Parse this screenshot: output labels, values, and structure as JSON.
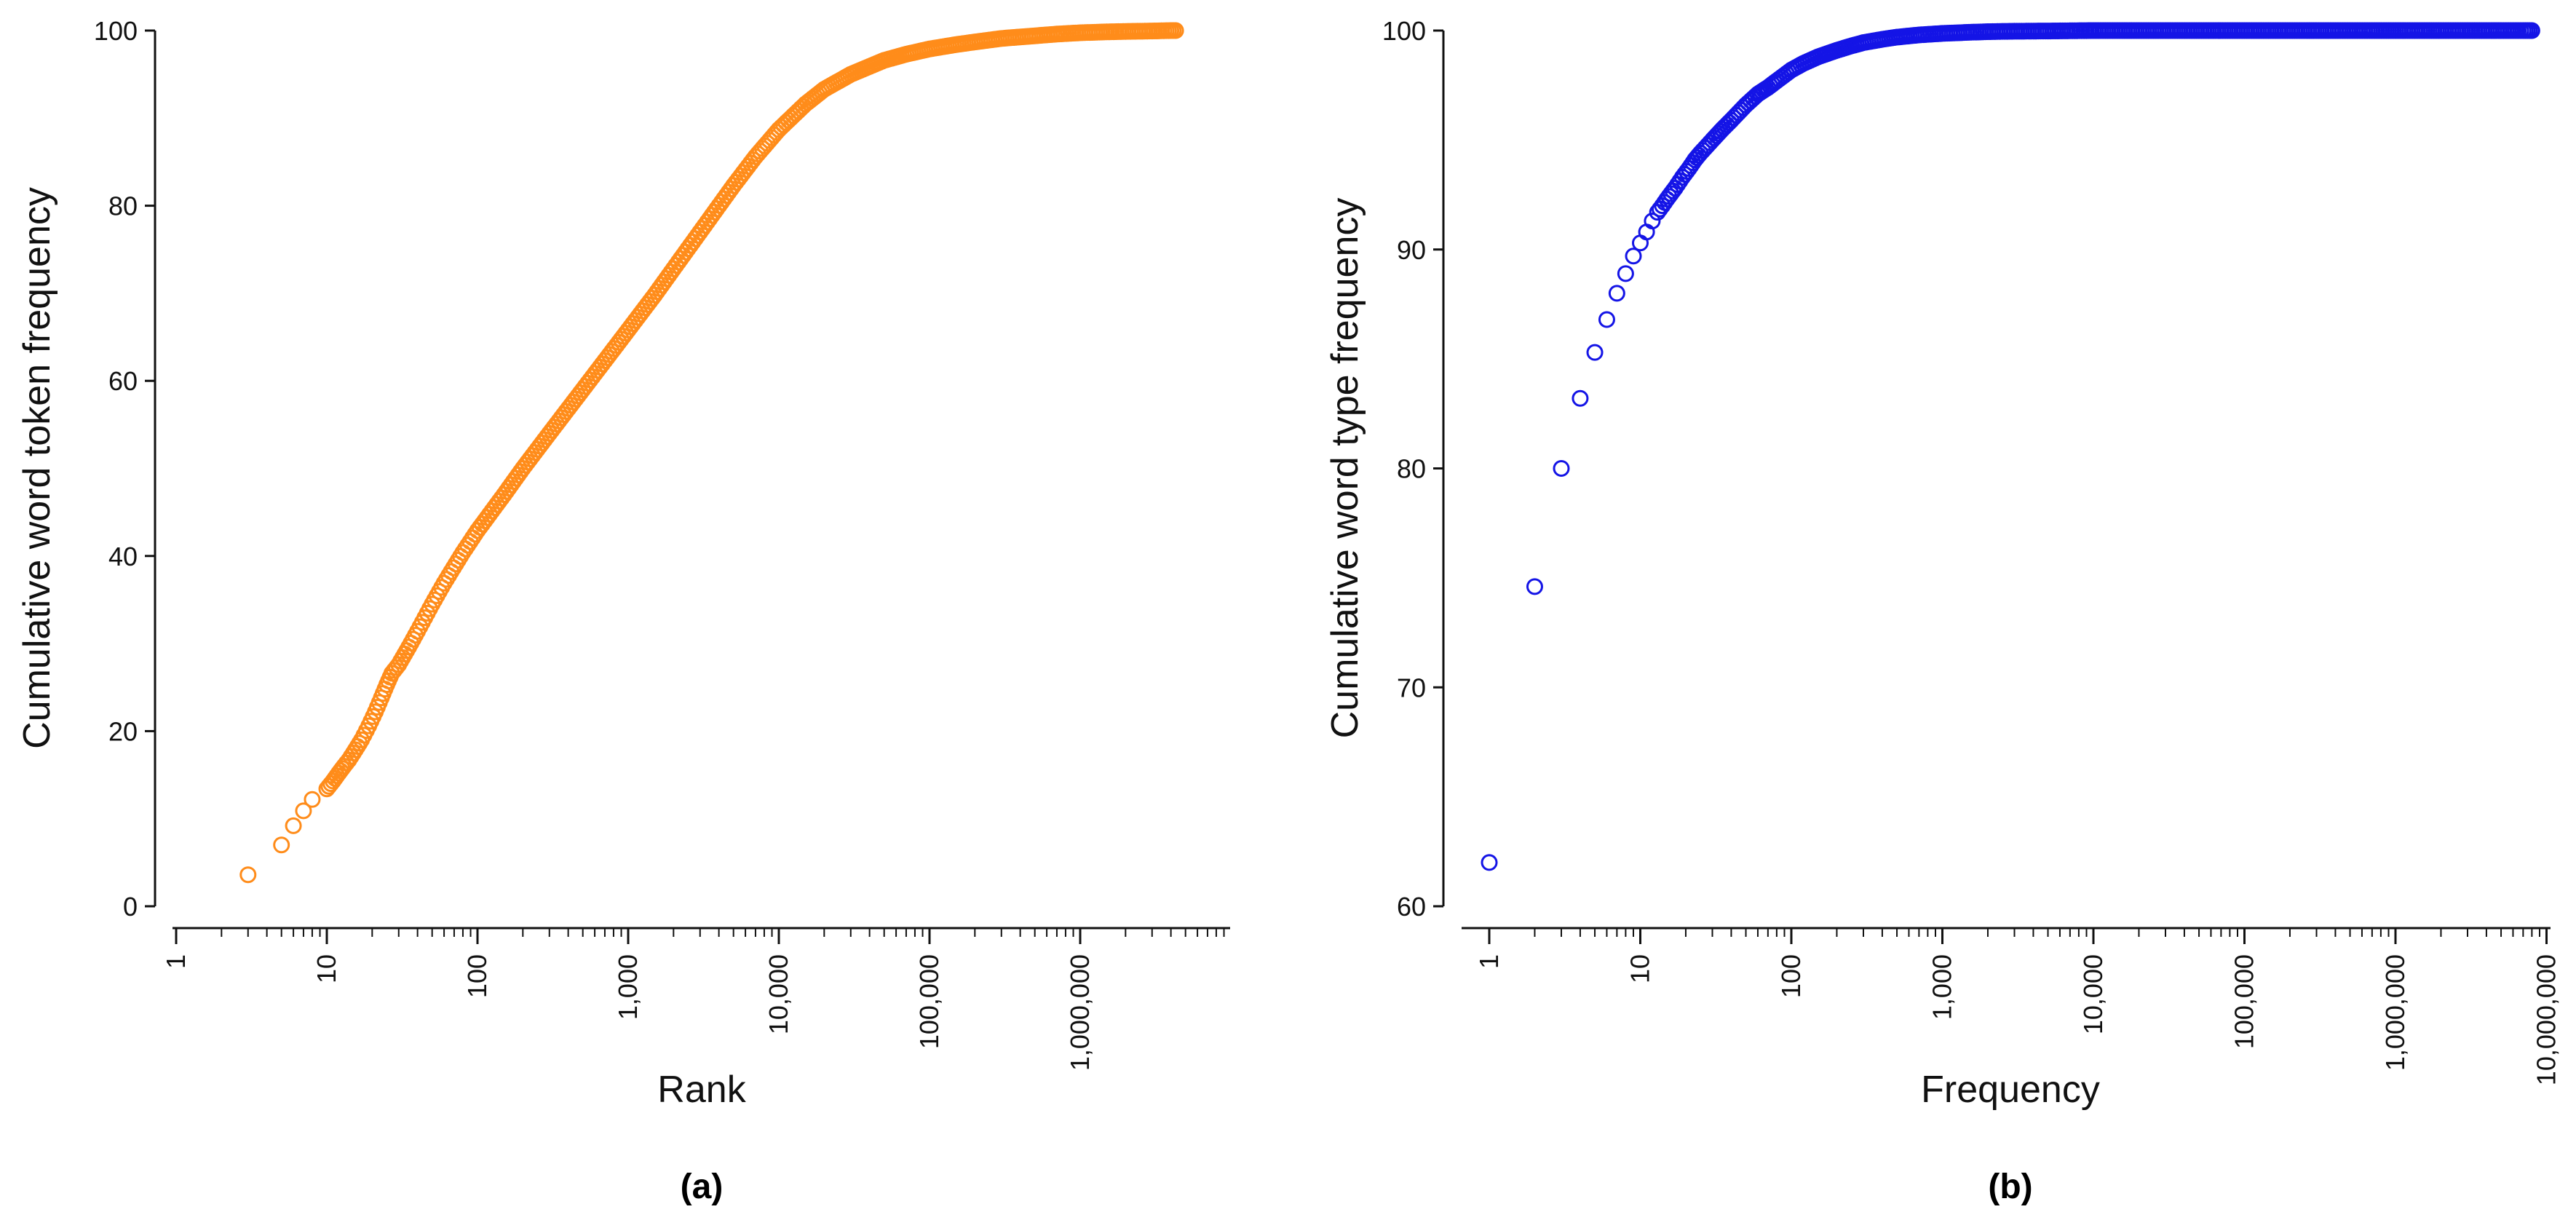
{
  "chart_data": [
    {
      "type": "scatter",
      "panel_label": "(a)",
      "xlabel": "Rank",
      "ylabel": "Cumulative word token frequency",
      "xscale": "log",
      "xlim": [
        1,
        10000000
      ],
      "ylim": [
        0,
        100
      ],
      "xticks": [
        1,
        10,
        100,
        1000,
        10000,
        100000,
        1000000
      ],
      "xtick_labels": [
        "1",
        "10",
        "100",
        "1,000",
        "10,000",
        "100,000",
        "1,000,000"
      ],
      "yticks": [
        0,
        20,
        40,
        60,
        80,
        100
      ],
      "ytick_labels": [
        "0",
        "20",
        "40",
        "60",
        "80",
        "100"
      ],
      "marker_color": "#FF8C1A",
      "marker": "open-circle",
      "curve_note": "Dense points trace the cumulative curve; values read from the figure",
      "x": [
        3,
        5,
        6,
        7,
        8,
        10,
        11,
        12,
        13,
        14,
        15,
        17,
        19,
        21,
        23,
        25,
        27,
        30,
        35,
        40,
        50,
        60,
        80,
        100,
        150,
        200,
        300,
        500,
        700,
        1000,
        1500,
        2000,
        3000,
        5000,
        7000,
        10000,
        15000,
        20000,
        30000,
        50000,
        70000,
        100000,
        150000,
        200000,
        300000,
        500000,
        700000,
        1000000,
        1500000,
        2000000,
        3000000,
        4000000,
        4300000
      ],
      "y": [
        3.6,
        7.0,
        9.2,
        10.9,
        12.2,
        13.4,
        14.3,
        15.2,
        16.0,
        16.7,
        17.5,
        19.0,
        20.6,
        22.2,
        23.8,
        25.3,
        26.6,
        27.6,
        29.6,
        31.4,
        34.5,
        36.9,
        40.4,
        42.9,
        47.0,
        50.0,
        54.0,
        59.0,
        62.3,
        65.8,
        69.8,
        72.8,
        77.0,
        82.3,
        85.6,
        88.7,
        91.6,
        93.3,
        95.0,
        96.6,
        97.3,
        97.9,
        98.4,
        98.7,
        99.1,
        99.4,
        99.6,
        99.75,
        99.85,
        99.9,
        99.95,
        100.0,
        100.0
      ]
    },
    {
      "type": "scatter",
      "panel_label": "(b)",
      "xlabel": "Frequency",
      "ylabel": "Cumulative word type frequency",
      "xscale": "log",
      "xlim": [
        1,
        10000000
      ],
      "ylim": [
        60,
        100
      ],
      "xticks": [
        1,
        10,
        100,
        1000,
        10000,
        100000,
        1000000,
        10000000
      ],
      "xtick_labels": [
        "1",
        "10",
        "100",
        "1,000",
        "10,000",
        "100,000",
        "1,000,000",
        "10,000,000"
      ],
      "yticks": [
        60,
        70,
        80,
        90,
        100
      ],
      "ytick_labels": [
        "60",
        "70",
        "80",
        "90",
        "100"
      ],
      "marker_color": "#1414E6",
      "marker": "open-circle",
      "x": [
        1,
        2,
        3,
        4,
        5,
        6,
        7,
        8,
        9,
        10,
        11,
        12,
        13,
        14,
        15,
        17,
        19,
        21,
        23,
        25,
        30,
        35,
        40,
        50,
        60,
        70,
        80,
        100,
        120,
        150,
        200,
        250,
        300,
        400,
        500,
        700,
        1000,
        1500,
        2000,
        3000,
        5000,
        7000,
        10000,
        20000,
        30000,
        50000,
        100000,
        200000,
        400000,
        700000,
        1200000,
        1500000,
        2000000,
        2500000,
        3000000,
        4000000,
        5000000,
        7000000,
        8000000
      ],
      "y": [
        62.0,
        74.6,
        80.0,
        83.2,
        85.3,
        86.8,
        88.0,
        88.9,
        89.7,
        90.3,
        90.8,
        91.3,
        91.7,
        92.0,
        92.3,
        92.8,
        93.3,
        93.7,
        94.1,
        94.4,
        95.0,
        95.5,
        95.9,
        96.6,
        97.1,
        97.4,
        97.7,
        98.2,
        98.5,
        98.8,
        99.1,
        99.3,
        99.45,
        99.6,
        99.7,
        99.8,
        99.87,
        99.92,
        99.95,
        99.97,
        99.98,
        99.99,
        100.0,
        100.0,
        100.0,
        100.0,
        100.0,
        100.0,
        100.0,
        100.0,
        100.0,
        100.0,
        100.0,
        100.0,
        100.0,
        100.0,
        100.0,
        100.0,
        100.0
      ]
    }
  ]
}
